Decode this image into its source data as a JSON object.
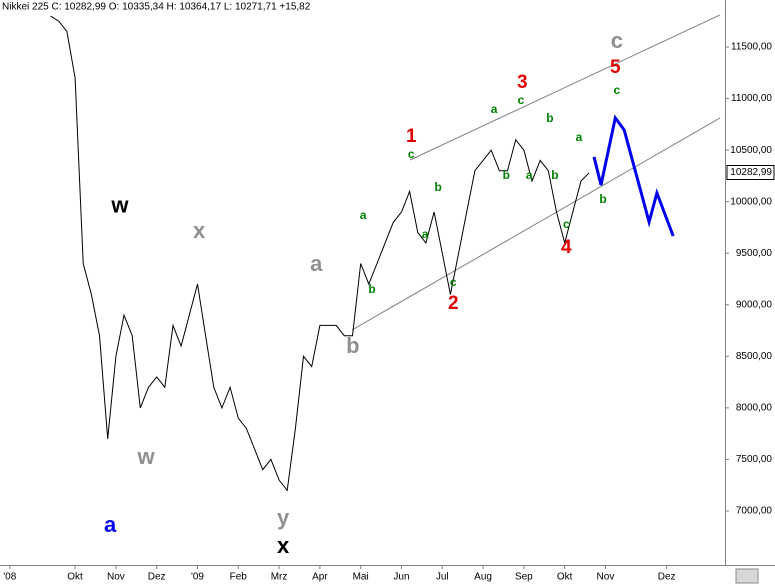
{
  "chart_data": {
    "type": "line",
    "title": "Nikkei 225 C: 10282,99 O: 10335,34 H: 10364,17 L: 10271,71 +15,82",
    "color": "#000000",
    "x": [
      0.4,
      0.6,
      0.8,
      1.0,
      1.2,
      1.4,
      1.6,
      1.8,
      2.0,
      2.2,
      2.4,
      2.6,
      2.8,
      3.0,
      3.2,
      3.4,
      3.6,
      3.8,
      4.0,
      4.2,
      4.4,
      4.6,
      4.8,
      5.0,
      5.2,
      5.4,
      5.6,
      5.8,
      6.0,
      6.2,
      6.4,
      6.6,
      6.8,
      7.0,
      7.2,
      7.4,
      7.6,
      7.8,
      8.0,
      8.2,
      8.4,
      8.6,
      8.8,
      9.0,
      9.2,
      9.4,
      9.6,
      9.8,
      10.0,
      10.2,
      10.4,
      10.6,
      10.8,
      11.0,
      11.2,
      11.4,
      11.6,
      11.8,
      12.0,
      12.2,
      12.4,
      12.6,
      12.8,
      13.0,
      13.2,
      13.4,
      13.6
    ],
    "values": [
      11800,
      11750,
      11650,
      11200,
      9400,
      9100,
      8700,
      7700,
      8500,
      8900,
      8700,
      8000,
      8200,
      8300,
      8200,
      8800,
      8600,
      8900,
      9200,
      8700,
      8200,
      8000,
      8200,
      7900,
      7800,
      7600,
      7400,
      7500,
      7300,
      7200,
      7800,
      8500,
      8400,
      8800,
      8800,
      8800,
      8700,
      8700,
      9400,
      9200,
      9400,
      9600,
      9800,
      9900,
      10100,
      9700,
      9600,
      9900,
      9500,
      9100,
      9500,
      9900,
      10300,
      10400,
      10500,
      10300,
      10300,
      10600,
      10500,
      10200,
      10400,
      10300,
      9900,
      9600,
      9900,
      10200,
      10280
    ],
    "forecast": {
      "color": "#0000ee",
      "x": [
        13.72,
        13.89,
        14.24,
        14.46,
        15.07,
        15.26,
        15.66
      ],
      "values": [
        10434,
        10162,
        10812,
        10695,
        9803,
        10084,
        9667
      ]
    },
    "trendlines": [
      {
        "color": "#808080",
        "x": [
          9.21,
          16.81
        ],
        "values": [
          10404,
          11811
        ]
      },
      {
        "color": "#808080",
        "x": [
          7.79,
          16.81
        ],
        "values": [
          8756,
          10812
        ]
      }
    ],
    "annotations": [
      {
        "text": "w",
        "x": 2.1,
        "y": 9949,
        "color": "#000000"
      },
      {
        "text": "x",
        "x": 4.04,
        "y": 9706,
        "color": "#909090"
      },
      {
        "text": "w",
        "x": 2.74,
        "y": 7514,
        "color": "#909090"
      },
      {
        "text": "a",
        "x": 1.86,
        "y": 6854,
        "color": "#0000ee"
      },
      {
        "text": "y",
        "x": 6.1,
        "y": 6922,
        "color": "#909090"
      },
      {
        "text": "x",
        "x": 6.1,
        "y": 6651,
        "color": "#000000"
      },
      {
        "text": "a",
        "x": 6.91,
        "y": 9386,
        "color": "#909090"
      },
      {
        "text": "b",
        "x": 7.81,
        "y": 8591,
        "color": "#909090"
      },
      {
        "text": "a",
        "x": 8.06,
        "y": 9861,
        "color": "#008000"
      },
      {
        "text": "b",
        "x": 8.28,
        "y": 9144,
        "color": "#008000"
      },
      {
        "text": "1",
        "x": 9.24,
        "y": 10628,
        "color": "#e00000"
      },
      {
        "text": "c",
        "x": 9.24,
        "y": 10453,
        "color": "#008000"
      },
      {
        "text": "b",
        "x": 9.9,
        "y": 10133,
        "color": "#008000"
      },
      {
        "text": "a",
        "x": 9.58,
        "y": 9677,
        "color": "#008000"
      },
      {
        "text": "c",
        "x": 10.27,
        "y": 9211,
        "color": "#008000"
      },
      {
        "text": "2",
        "x": 10.27,
        "y": 9008,
        "color": "#e00000"
      },
      {
        "text": "a",
        "x": 11.27,
        "y": 10889,
        "color": "#008000"
      },
      {
        "text": "3",
        "x": 11.96,
        "y": 11151,
        "color": "#e00000"
      },
      {
        "text": "c",
        "x": 11.93,
        "y": 10977,
        "color": "#008000"
      },
      {
        "text": "b",
        "x": 11.57,
        "y": 10249,
        "color": "#008000"
      },
      {
        "text": "a",
        "x": 12.13,
        "y": 10249,
        "color": "#008000"
      },
      {
        "text": "b",
        "x": 12.64,
        "y": 10802,
        "color": "#008000"
      },
      {
        "text": "b",
        "x": 12.76,
        "y": 10249,
        "color": "#008000"
      },
      {
        "text": "c",
        "x": 13.04,
        "y": 9774,
        "color": "#008000"
      },
      {
        "text": "4",
        "x": 13.04,
        "y": 9551,
        "color": "#e00000"
      },
      {
        "text": "a",
        "x": 13.35,
        "y": 10618,
        "color": "#008000"
      },
      {
        "text": "b",
        "x": 13.94,
        "y": 10016,
        "color": "#008000"
      },
      {
        "text": "c",
        "x": 14.28,
        "y": 11549,
        "color": "#909090"
      },
      {
        "text": "5",
        "x": 14.24,
        "y": 11297,
        "color": "#e00000"
      },
      {
        "text": "c",
        "x": 14.28,
        "y": 11074,
        "color": "#008000"
      }
    ],
    "last_price": {
      "value": 10282.99,
      "label": "10282,99"
    },
    "xlim": [
      -0.84,
      16.93
    ],
    "ylim": [
      6476,
      11956
    ],
    "xticks": [
      {
        "value": -0.6,
        "label": "'08"
      },
      {
        "value": 1,
        "label": "Okt"
      },
      {
        "value": 2,
        "label": "Nov"
      },
      {
        "value": 3,
        "label": "Dez"
      },
      {
        "value": 4,
        "label": "'09"
      },
      {
        "value": 5,
        "label": "Feb"
      },
      {
        "value": 6,
        "label": "Mrz"
      },
      {
        "value": 7,
        "label": "Apr"
      },
      {
        "value": 8,
        "label": "Mai"
      },
      {
        "value": 9,
        "label": "Jun"
      },
      {
        "value": 10,
        "label": "Jul"
      },
      {
        "value": 11,
        "label": "Aug"
      },
      {
        "value": 12,
        "label": "Sep"
      },
      {
        "value": 13,
        "label": "Okt"
      },
      {
        "value": 14,
        "label": "Nov"
      },
      {
        "value": 15.5,
        "label": "Dez"
      }
    ],
    "yticks": [
      {
        "value": 7000,
        "label": "7000,00"
      },
      {
        "value": 7500,
        "label": "7500,00"
      },
      {
        "value": 8000,
        "label": "8000,00"
      },
      {
        "value": 8500,
        "label": "8500,00"
      },
      {
        "value": 9000,
        "label": "9000,00"
      },
      {
        "value": 9500,
        "label": "9500,00"
      },
      {
        "value": 10000,
        "label": "10000,00"
      },
      {
        "value": 10500,
        "label": "10500,00"
      },
      {
        "value": 11000,
        "label": "11000,00"
      },
      {
        "value": 11500,
        "label": "11500,00"
      }
    ]
  }
}
